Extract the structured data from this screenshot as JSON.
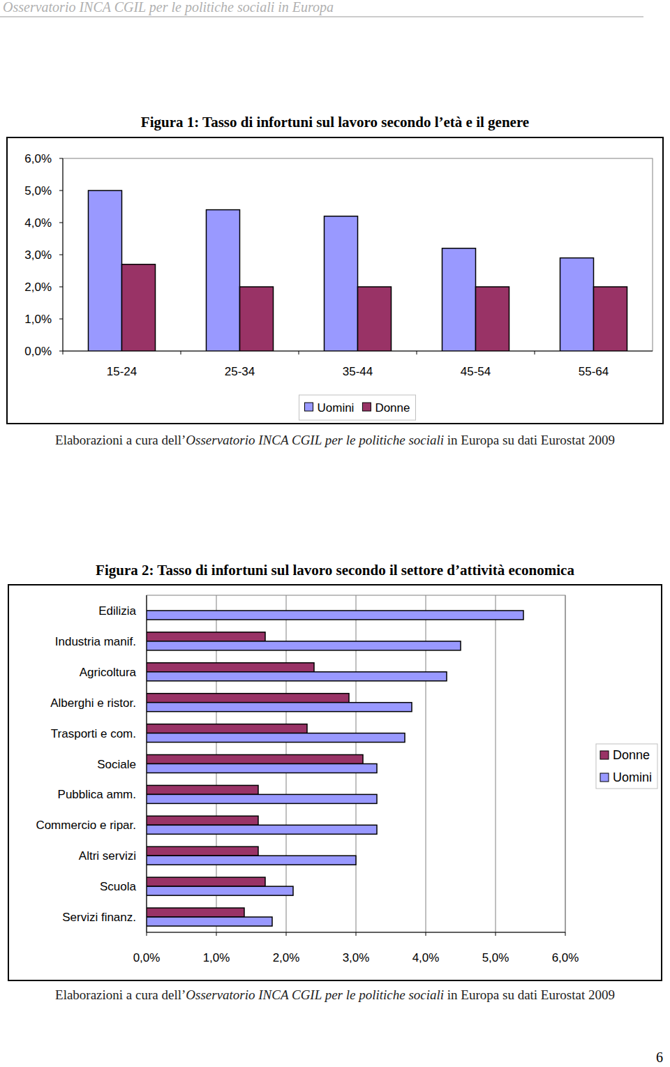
{
  "page": {
    "header": "Osservatorio INCA CGIL per le politiche sociali in Europa",
    "page_number": "6",
    "sources": [
      [
        "Elaborazioni a cura dell’",
        "Osservatorio INCA CGIL per le politiche sociali",
        " in Europa su dati Eurostat 2009"
      ],
      [
        "Elaborazioni a cura dell’",
        "Osservatorio INCA CGIL per le politiche sociali",
        " in Europa su dati Eurostat 2009"
      ]
    ]
  },
  "chart_data": [
    {
      "type": "bar",
      "title": "Figura 1: Tasso di infortuni sul lavoro secondo l’età e il genere",
      "categories": [
        "15-24",
        "25-34",
        "35-44",
        "45-54",
        "55-64"
      ],
      "series": [
        {
          "name": "Uomini",
          "color": "#9999ff",
          "values": [
            5.0,
            4.4,
            4.2,
            3.2,
            2.9
          ]
        },
        {
          "name": "Donne",
          "color": "#993366",
          "values": [
            2.7,
            2.0,
            2.0,
            2.0,
            2.0
          ]
        }
      ],
      "ylim": [
        0,
        6
      ],
      "yticks": [
        {
          "value": 0,
          "label": "0,0%"
        },
        {
          "value": 1,
          "label": "1,0%"
        },
        {
          "value": 2,
          "label": "2,0%"
        },
        {
          "value": 3,
          "label": "3,0%"
        },
        {
          "value": 4,
          "label": "4,0%"
        },
        {
          "value": 5,
          "label": "5,0%"
        },
        {
          "value": 6,
          "label": "6,0%"
        }
      ],
      "grid": false,
      "legend": "bottom"
    },
    {
      "type": "bar",
      "orientation": "horizontal",
      "title": "Figura 2: Tasso di infortuni sul lavoro secondo il settore d’attività economica",
      "categories": [
        "Edilizia",
        "Industria manif.",
        "Agricoltura",
        "Alberghi e ristor.",
        "Trasporti e com.",
        "Sociale",
        "Pubblica amm.",
        "Commercio e ripar.",
        "Altri servizi",
        "Scuola",
        "Servizi finanz."
      ],
      "series": [
        {
          "name": "Donne",
          "color": "#993366",
          "values": [
            null,
            1.7,
            2.4,
            2.9,
            2.3,
            3.1,
            1.6,
            1.6,
            1.6,
            1.7,
            1.4
          ]
        },
        {
          "name": "Uomini",
          "color": "#9999ff",
          "values": [
            5.4,
            4.5,
            4.3,
            3.8,
            3.7,
            3.3,
            3.3,
            3.3,
            3.0,
            2.1,
            1.8
          ]
        }
      ],
      "xlim": [
        0,
        6
      ],
      "xticks": [
        {
          "value": 0,
          "label": "0,0%"
        },
        {
          "value": 1,
          "label": "1,0%"
        },
        {
          "value": 2,
          "label": "2,0%"
        },
        {
          "value": 3,
          "label": "3,0%"
        },
        {
          "value": 4,
          "label": "4,0%"
        },
        {
          "value": 5,
          "label": "5,0%"
        },
        {
          "value": 6,
          "label": "6,0%"
        }
      ],
      "grid": true,
      "legend": "right"
    }
  ]
}
